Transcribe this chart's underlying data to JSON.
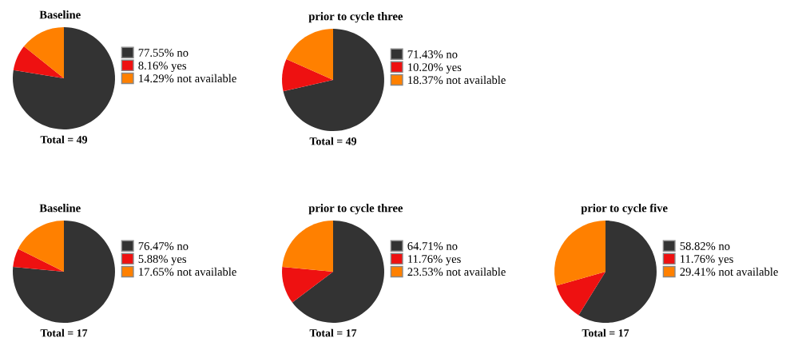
{
  "chart_data": [
    {
      "type": "pie",
      "title": "Baseline",
      "categories": [
        "no",
        "yes",
        "not available"
      ],
      "values": [
        77.55,
        8.16,
        14.29
      ],
      "value_labels": [
        "77.55%",
        "8.16%",
        "14.29%"
      ],
      "colors": [
        "#333333",
        "#ee1111",
        "#ff8000"
      ],
      "legend": "right",
      "annotations": [
        "Total = 49"
      ]
    },
    {
      "type": "pie",
      "title": "prior to cycle three",
      "categories": [
        "no",
        "yes",
        "not available"
      ],
      "values": [
        71.43,
        10.2,
        18.37
      ],
      "value_labels": [
        "71.43%",
        "10.20%",
        "18.37%"
      ],
      "colors": [
        "#333333",
        "#ee1111",
        "#ff8000"
      ],
      "legend": "right",
      "annotations": [
        "Total = 49"
      ]
    },
    {
      "type": "pie",
      "title": "Baseline",
      "categories": [
        "no",
        "yes",
        "not available"
      ],
      "values": [
        76.47,
        5.88,
        17.65
      ],
      "value_labels": [
        "76.47%",
        "5.88%",
        "17.65%"
      ],
      "colors": [
        "#333333",
        "#ee1111",
        "#ff8000"
      ],
      "legend": "right",
      "annotations": [
        "Total = 17"
      ]
    },
    {
      "type": "pie",
      "title": "prior to cycle three",
      "categories": [
        "no",
        "yes",
        "not available"
      ],
      "values": [
        64.71,
        11.76,
        23.53
      ],
      "value_labels": [
        "64.71%",
        "11.76%",
        "23.53%"
      ],
      "colors": [
        "#333333",
        "#ee1111",
        "#ff8000"
      ],
      "legend": "right",
      "annotations": [
        "Total = 17"
      ]
    },
    {
      "type": "pie",
      "title": "prior to cycle five",
      "categories": [
        "no",
        "yes",
        "not available"
      ],
      "values": [
        58.82,
        11.76,
        29.41
      ],
      "value_labels": [
        "58.82%",
        "11.76%",
        "29.41%"
      ],
      "colors": [
        "#333333",
        "#ee1111",
        "#ff8000"
      ],
      "legend": "right",
      "annotations": [
        "Total = 17"
      ]
    }
  ]
}
